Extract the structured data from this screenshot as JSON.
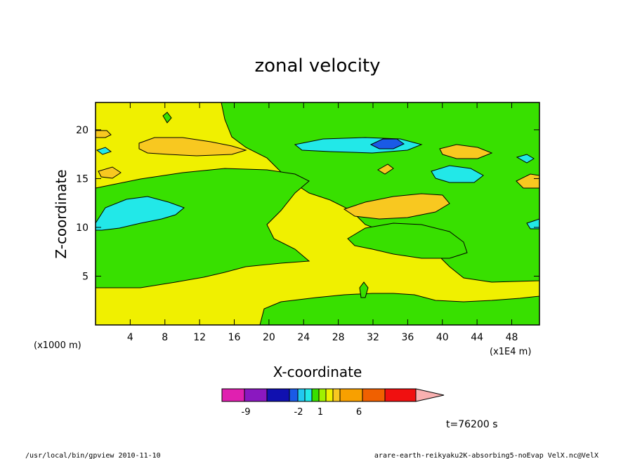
{
  "chart_data": {
    "type": "contour",
    "title": "zonal velocity",
    "xlabel": "X-coordinate",
    "ylabel": "Z-coordinate",
    "x_unit_label": "(x1E4 m)",
    "y_unit_label": "(x1000 m)",
    "xticks": [
      "4",
      "8",
      "12",
      "16",
      "20",
      "24",
      "28",
      "32",
      "36",
      "40",
      "44",
      "48"
    ],
    "xtick_values": [
      4,
      8,
      12,
      16,
      20,
      24,
      28,
      32,
      36,
      40,
      44,
      48
    ],
    "yticks": [
      "5",
      "10",
      "15",
      "20"
    ],
    "ytick_values": [
      5,
      10,
      15,
      20
    ],
    "xlim": [
      0,
      51.2
    ],
    "ylim": [
      0,
      22.8
    ],
    "time_label": "t=76200 s",
    "colorbar": {
      "levels_shown": [
        "-9",
        "-2",
        "1",
        "6"
      ],
      "colors": [
        "#e020b0",
        "#8a18c0",
        "#1010b0",
        "#1a5ae6",
        "#22c8f0",
        "#22e8e8",
        "#38e000",
        "#a0f000",
        "#f0f000",
        "#f8c820",
        "#f8a000",
        "#f06000",
        "#f01010",
        "#f87070",
        "#f8b0b0"
      ]
    },
    "regions": [
      {
        "name": "yellow-region",
        "color": "#f0f000",
        "approx_value": "0 to 1"
      },
      {
        "name": "green-region",
        "color": "#38e000",
        "approx_value": "-1 to 0"
      },
      {
        "name": "orange-region",
        "color": "#f8c820",
        "approx_value": "1 to 2"
      },
      {
        "name": "cyan-region",
        "color": "#22e8e8",
        "approx_value": "-2 to -1"
      },
      {
        "name": "blue-region",
        "color": "#1a5ae6",
        "approx_value": "below -2"
      }
    ]
  },
  "footer": {
    "left": "/usr/local/bin/gpview  2010-11-10",
    "right": "arare-earth-reikyaku2K-absorbing5-noEvap_VelX.nc@VelX"
  }
}
